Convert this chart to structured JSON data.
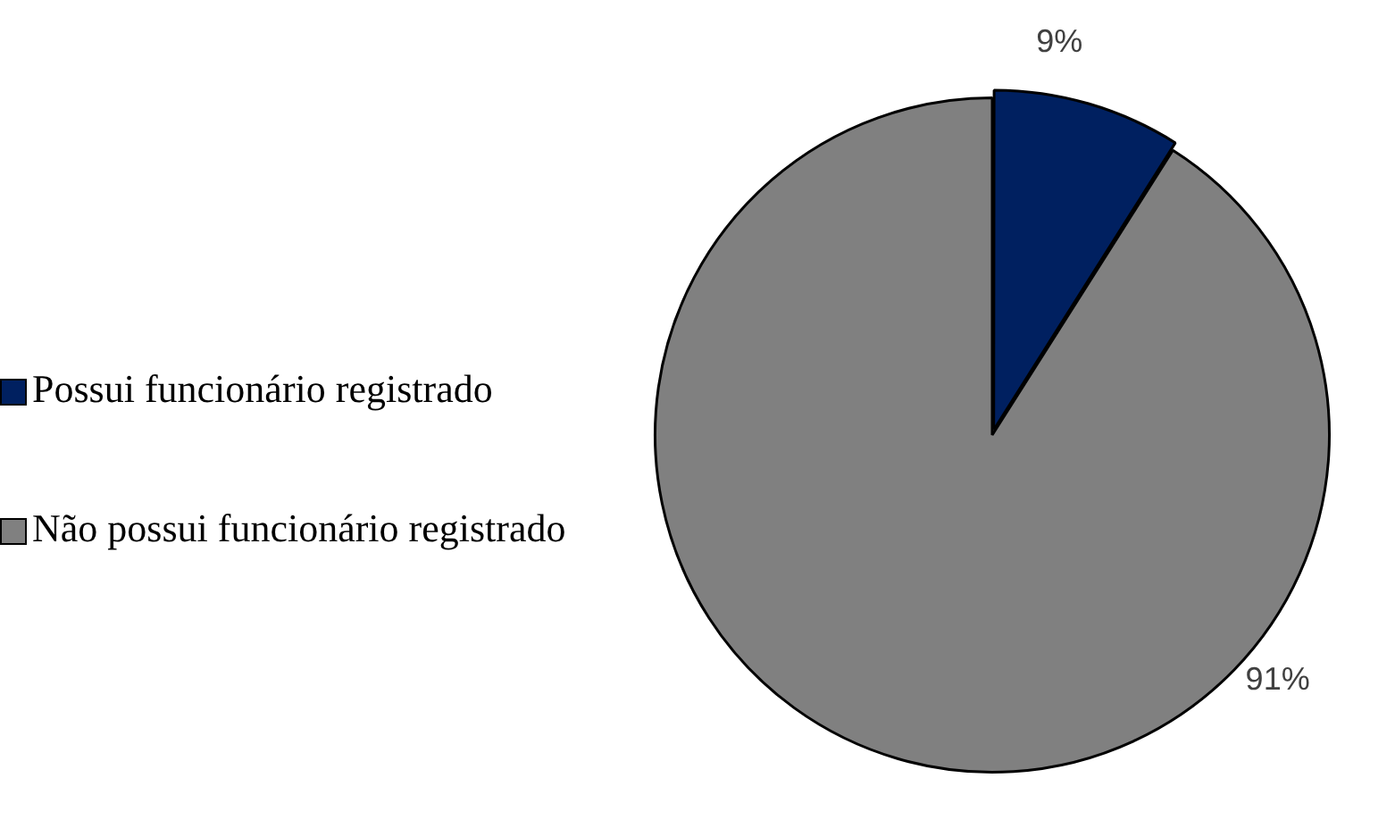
{
  "chart_data": {
    "type": "pie",
    "categories": [
      "Possui funcionário registrado",
      "Não possui funcionário registrado"
    ],
    "values": [
      9,
      91
    ],
    "colors": [
      "#002060",
      "#808080"
    ],
    "value_labels": [
      "9%",
      "91%"
    ],
    "legend": "left"
  }
}
